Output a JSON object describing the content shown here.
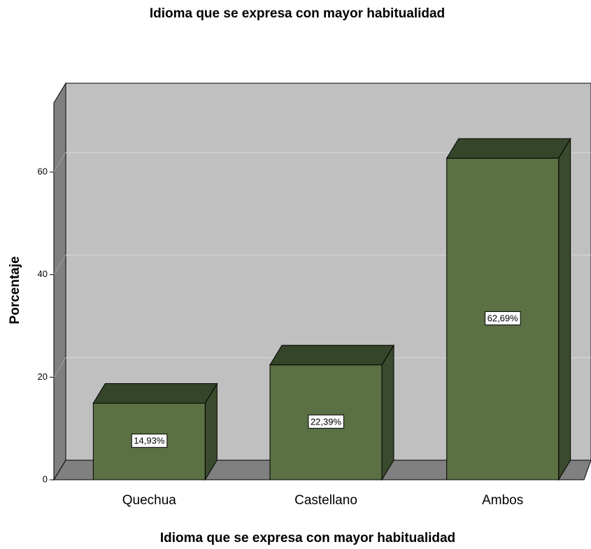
{
  "chart_data": {
    "type": "bar3d",
    "title": "Idioma que se expresa con mayor habitualidad",
    "x_label": "Idioma que se expresa con mayor habitualidad",
    "y_label": "Porcentaje",
    "categories": [
      "Quechua",
      "Castellano",
      "Ambos"
    ],
    "values": [
      14.93,
      22.39,
      62.69
    ],
    "value_labels": [
      "14,93%",
      "22,39%",
      "62,69%"
    ],
    "color": "#5b7043",
    "ylim": [
      0,
      73.5
    ],
    "yticks": [
      0,
      20,
      40,
      60
    ],
    "grid": true
  }
}
